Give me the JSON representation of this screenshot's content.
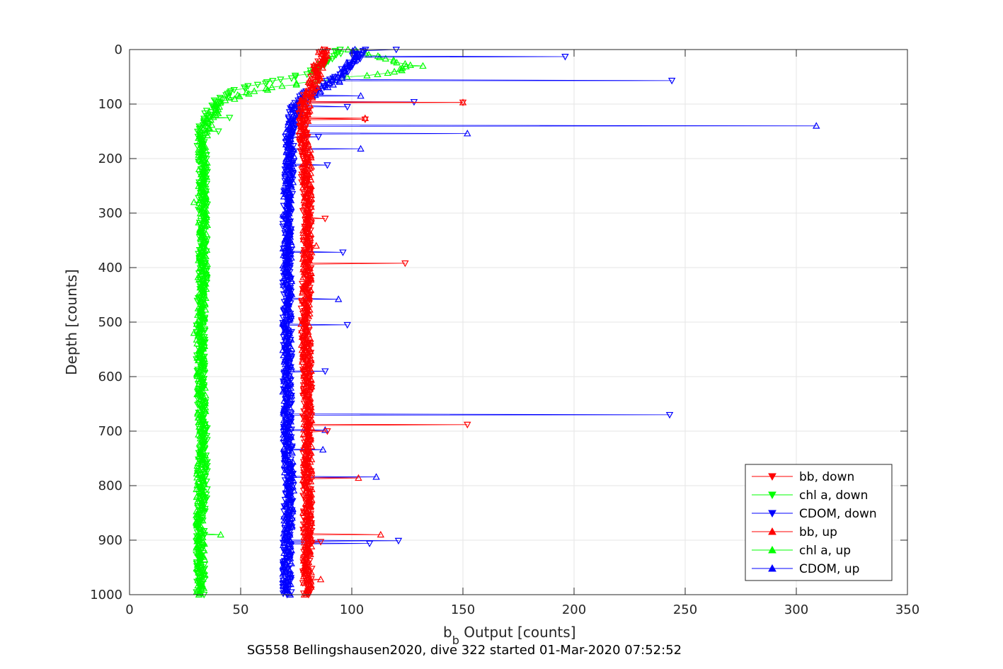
{
  "chart_data": {
    "type": "scatter",
    "caption": "SG558 Bellingshausen2020, dive 322 started 01-Mar-2020 07:52:52",
    "xlabel_main": "b",
    "xlabel_sub": "b",
    "xlabel_rest": " Output [counts]",
    "ylabel": "Depth [counts]",
    "xlim": [
      0,
      350
    ],
    "ylim": [
      0,
      1000
    ],
    "y_reversed": true,
    "grid": true,
    "legend_position": "bottom-right",
    "x_ticks": [
      "0",
      "50",
      "100",
      "150",
      "200",
      "250",
      "300",
      "350"
    ],
    "y_ticks": [
      "0",
      "100",
      "200",
      "300",
      "400",
      "500",
      "600",
      "700",
      "800",
      "900",
      "1000"
    ],
    "series": [
      {
        "name": "bb, down",
        "color": "#ff0000",
        "marker": "triangle-down",
        "base": [
          [
            0,
            87
          ],
          [
            20,
            86
          ],
          [
            40,
            84
          ],
          [
            60,
            83
          ],
          [
            80,
            81
          ],
          [
            100,
            79
          ],
          [
            150,
            78
          ],
          [
            200,
            79
          ],
          [
            300,
            80
          ],
          [
            400,
            80
          ],
          [
            500,
            79
          ],
          [
            600,
            80
          ],
          [
            700,
            80
          ],
          [
            800,
            80
          ],
          [
            900,
            80
          ],
          [
            1000,
            80
          ]
        ],
        "spikes": [
          [
            97,
            150
          ],
          [
            128,
            106
          ],
          [
            310,
            88
          ],
          [
            392,
            124
          ],
          [
            688,
            152
          ],
          [
            700,
            89
          ],
          [
            903,
            86
          ]
        ]
      },
      {
        "name": "chl a, down",
        "color": "#00ff00",
        "marker": "triangle-down",
        "base": [
          [
            0,
            94
          ],
          [
            10,
            92
          ],
          [
            20,
            88
          ],
          [
            35,
            85
          ],
          [
            50,
            75
          ],
          [
            60,
            62
          ],
          [
            65,
            55
          ],
          [
            75,
            48
          ],
          [
            90,
            40
          ],
          [
            110,
            37
          ],
          [
            130,
            34
          ],
          [
            160,
            32
          ],
          [
            200,
            33
          ],
          [
            300,
            33
          ],
          [
            400,
            33
          ],
          [
            500,
            32
          ],
          [
            600,
            32
          ],
          [
            700,
            33
          ],
          [
            800,
            33
          ],
          [
            900,
            32
          ],
          [
            1000,
            32
          ]
        ],
        "spikes": [
          [
            125,
            45
          ],
          [
            150,
            40
          ]
        ]
      },
      {
        "name": "CDOM, down",
        "color": "#0000ff",
        "marker": "triangle-down",
        "base": [
          [
            0,
            104
          ],
          [
            20,
            101
          ],
          [
            40,
            97
          ],
          [
            60,
            90
          ],
          [
            80,
            80
          ],
          [
            100,
            75
          ],
          [
            150,
            72
          ],
          [
            200,
            72
          ],
          [
            300,
            71
          ],
          [
            400,
            71
          ],
          [
            500,
            71
          ],
          [
            600,
            71
          ],
          [
            700,
            71
          ],
          [
            800,
            72
          ],
          [
            900,
            71
          ],
          [
            1000,
            71
          ]
        ],
        "spikes": [
          [
            0,
            120
          ],
          [
            13,
            196
          ],
          [
            57,
            244
          ],
          [
            96,
            128
          ],
          [
            105,
            98
          ],
          [
            160,
            85
          ],
          [
            212,
            89
          ],
          [
            372,
            96
          ],
          [
            505,
            98
          ],
          [
            590,
            88
          ],
          [
            670,
            243
          ],
          [
            906,
            108
          ],
          [
            901,
            121
          ]
        ]
      },
      {
        "name": "bb, up",
        "color": "#ff0000",
        "marker": "triangle-up",
        "base": [
          [
            0,
            87
          ],
          [
            20,
            86
          ],
          [
            40,
            84
          ],
          [
            60,
            83
          ],
          [
            80,
            81
          ],
          [
            100,
            79
          ],
          [
            150,
            78
          ],
          [
            200,
            80
          ],
          [
            300,
            80
          ],
          [
            400,
            80
          ],
          [
            500,
            79
          ],
          [
            600,
            80
          ],
          [
            700,
            80
          ],
          [
            800,
            80
          ],
          [
            900,
            80
          ],
          [
            1000,
            80
          ]
        ],
        "spikes": [
          [
            97,
            150
          ],
          [
            126,
            106
          ],
          [
            360,
            84
          ],
          [
            786,
            103
          ],
          [
            890,
            113
          ],
          [
            972,
            86
          ]
        ]
      },
      {
        "name": "chl a, up",
        "color": "#00ff00",
        "marker": "triangle-up",
        "base": [
          [
            0,
            97
          ],
          [
            10,
            110
          ],
          [
            20,
            118
          ],
          [
            30,
            125
          ],
          [
            40,
            120
          ],
          [
            50,
            100
          ],
          [
            60,
            80
          ],
          [
            70,
            65
          ],
          [
            85,
            48
          ],
          [
            100,
            40
          ],
          [
            130,
            36
          ],
          [
            160,
            33
          ],
          [
            200,
            33
          ],
          [
            300,
            33
          ],
          [
            400,
            33
          ],
          [
            500,
            32
          ],
          [
            600,
            32
          ],
          [
            700,
            33
          ],
          [
            800,
            32
          ],
          [
            900,
            32
          ],
          [
            1000,
            32
          ]
        ],
        "spikes": [
          [
            30,
            132
          ],
          [
            280,
            29
          ],
          [
            890,
            41
          ],
          [
            520,
            29
          ]
        ]
      },
      {
        "name": "CDOM, up",
        "color": "#0000ff",
        "marker": "triangle-up",
        "base": [
          [
            0,
            103
          ],
          [
            20,
            101
          ],
          [
            40,
            97
          ],
          [
            60,
            92
          ],
          [
            80,
            83
          ],
          [
            100,
            75
          ],
          [
            150,
            72
          ],
          [
            200,
            72
          ],
          [
            300,
            71
          ],
          [
            400,
            71
          ],
          [
            500,
            71
          ],
          [
            600,
            71
          ],
          [
            700,
            71
          ],
          [
            800,
            72
          ],
          [
            900,
            71
          ],
          [
            1000,
            71
          ]
        ],
        "spikes": [
          [
            85,
            104
          ],
          [
            140,
            309
          ],
          [
            154,
            152
          ],
          [
            182,
            104
          ],
          [
            458,
            94
          ],
          [
            698,
            88
          ],
          [
            734,
            87
          ],
          [
            784,
            111
          ]
        ]
      }
    ]
  }
}
